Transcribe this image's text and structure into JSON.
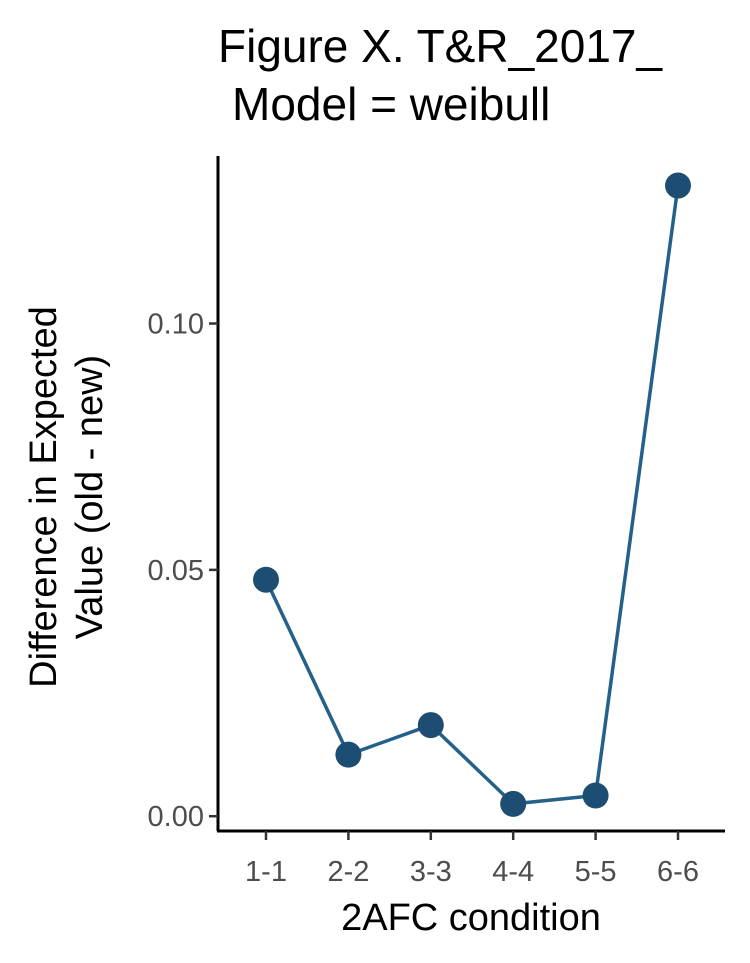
{
  "chart_data": {
    "type": "line",
    "title_lines": [
      "Figure X. T&R_2017_",
      "Model = weibull"
    ],
    "xlabel": "2AFC condition",
    "ylabel_lines": [
      "Difference in Expected",
      "Value (old - new)"
    ],
    "categories": [
      "1-1",
      "2-2",
      "3-3",
      "4-4",
      "5-5",
      "6-6"
    ],
    "values": [
      0.048,
      0.0125,
      0.0185,
      0.0025,
      0.0042,
      0.128
    ],
    "ylim": [
      -0.003,
      0.134
    ],
    "yticks": [
      0.0,
      0.05,
      0.1
    ],
    "ytick_labels": [
      "0.00",
      "0.05",
      "0.10"
    ],
    "grid": false,
    "line_color": "#24618a",
    "point_color": "#1d4d72"
  }
}
